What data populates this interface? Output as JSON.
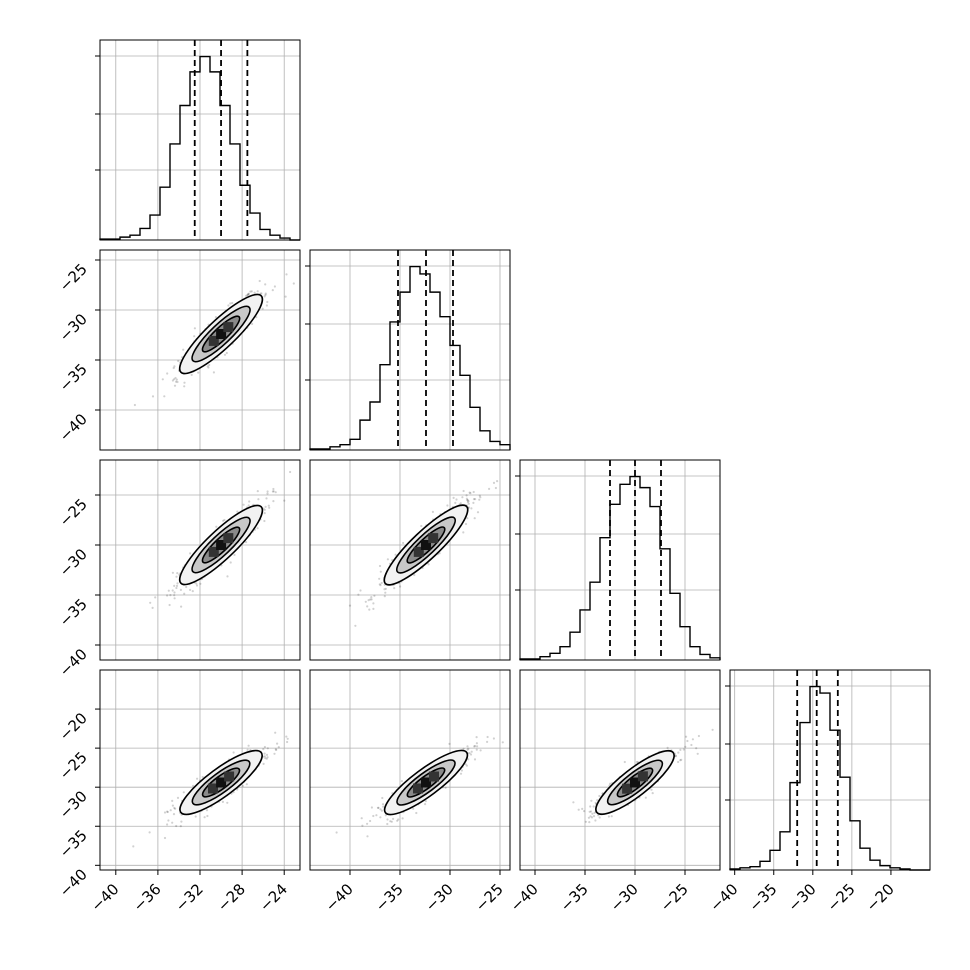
{
  "chart_data": {
    "type": "corner",
    "grid": true,
    "dimensions": [
      {
        "range": [
          -41.5,
          -22.5
        ],
        "ticks": [
          "−40",
          "−36",
          "−32",
          "−28",
          "−24"
        ],
        "tick_values": [
          -40,
          -36,
          -32,
          -28,
          -24
        ]
      },
      {
        "range": [
          -44,
          -24
        ],
        "ticks": [
          "−40",
          "−35",
          "−30",
          "−25"
        ],
        "tick_values": [
          -40,
          -35,
          -30,
          -25
        ]
      },
      {
        "range": [
          -41.5,
          -21.5
        ],
        "ticks": [
          "−40",
          "−35",
          "−30",
          "−25"
        ],
        "tick_values": [
          -40,
          -35,
          -30,
          -25
        ]
      },
      {
        "range": [
          -40.6,
          -15
        ],
        "ticks": [
          "−40",
          "−35",
          "−30",
          "−25",
          "−20"
        ],
        "tick_values": [
          -40,
          -35,
          -30,
          -25,
          -20
        ]
      }
    ],
    "panel_y_ticks": [
      null,
      {
        "ticks": [
          "−25",
          "−30",
          "−35",
          "−40"
        ],
        "tick_values": [
          -25,
          -30,
          -35,
          -40
        ]
      },
      {
        "ticks": [
          "−25",
          "−30",
          "−35",
          "−40"
        ],
        "tick_values": [
          -25,
          -30,
          -35,
          -40
        ]
      },
      {
        "ticks": [
          "−20",
          "−25",
          "−30",
          "−35",
          "−40"
        ],
        "tick_values": [
          -20,
          -25,
          -30,
          -35,
          -40
        ]
      }
    ],
    "marginals": [
      {
        "quantiles": [
          -32.5,
          -30.0,
          -27.5
        ],
        "bin_edges": [
          -41.5,
          -40.55,
          -39.6,
          -38.65,
          -37.7,
          -36.75,
          -35.8,
          -34.85,
          -33.9,
          -32.95,
          -32.0,
          -31.05,
          -30.1,
          -29.15,
          -28.2,
          -27.25,
          -26.3,
          -25.35,
          -24.4,
          -23.45,
          -22.5
        ],
        "counts": [
          1,
          1,
          3,
          5,
          12,
          26,
          55,
          100,
          140,
          175,
          191,
          175,
          140,
          100,
          57,
          28,
          11,
          5,
          2,
          0
        ]
      },
      {
        "quantiles": [
          -35.2,
          -32.4,
          -29.7
        ],
        "bin_edges": [
          -44,
          -43,
          -42,
          -41,
          -40,
          -39,
          -38,
          -37,
          -36,
          -35,
          -34,
          -33,
          -32,
          -31,
          -30,
          -29,
          -28,
          -27,
          -26,
          -25,
          -24
        ],
        "counts": [
          1,
          1,
          3,
          5,
          10,
          28,
          45,
          80,
          120,
          148,
          172,
          165,
          148,
          125,
          98,
          70,
          40,
          18,
          8,
          5
        ]
      },
      {
        "quantiles": [
          -32.5,
          -30.0,
          -27.4
        ],
        "bin_edges": [
          -41.5,
          -40.5,
          -39.5,
          -38.5,
          -37.5,
          -36.5,
          -35.5,
          -34.5,
          -33.5,
          -32.5,
          -31.5,
          -30.5,
          -29.5,
          -28.5,
          -27.5,
          -26.5,
          -25.5,
          -24.5,
          -23.5,
          -22.5,
          -21.5
        ],
        "counts": [
          1,
          1,
          3,
          6,
          12,
          25,
          45,
          70,
          110,
          140,
          158,
          165,
          155,
          138,
          100,
          60,
          30,
          12,
          5,
          2
        ]
      },
      {
        "quantiles": [
          -32.0,
          -29.5,
          -26.8
        ],
        "bin_edges": [
          -40.6,
          -39.32,
          -38.04,
          -36.76,
          -35.48,
          -34.2,
          -32.92,
          -31.64,
          -30.36,
          -29.08,
          -27.8,
          -26.52,
          -25.24,
          -23.96,
          -22.68,
          -21.4,
          -20.12,
          -18.84,
          -17.56,
          -16.28,
          -15.0
        ],
        "counts": [
          1,
          2,
          3,
          8,
          18,
          35,
          80,
          135,
          168,
          162,
          128,
          85,
          45,
          20,
          9,
          4,
          2,
          1,
          0,
          0
        ]
      }
    ],
    "pairs": [
      {
        "row": 1,
        "col": 0,
        "center": [
          -30.0,
          -32.4
        ],
        "slope": 1.0,
        "spread_major": 2.7,
        "spread_minor": 0.55
      },
      {
        "row": 2,
        "col": 0,
        "center": [
          -30.0,
          -30.0
        ],
        "slope": 1.0,
        "spread_major": 2.7,
        "spread_minor": 0.55
      },
      {
        "row": 3,
        "col": 0,
        "center": [
          -30.0,
          -29.4
        ],
        "slope": 1.0,
        "spread_major": 2.7,
        "spread_minor": 0.6
      },
      {
        "row": 2,
        "col": 1,
        "center": [
          -32.4,
          -30.0
        ],
        "slope": 0.95,
        "spread_major": 2.8,
        "spread_minor": 0.55
      },
      {
        "row": 3,
        "col": 1,
        "center": [
          -32.4,
          -29.4
        ],
        "slope": 0.95,
        "spread_major": 2.8,
        "spread_minor": 0.6
      },
      {
        "row": 3,
        "col": 2,
        "center": [
          -30.0,
          -29.4
        ],
        "slope": 1.0,
        "spread_major": 2.7,
        "spread_minor": 0.6
      }
    ]
  }
}
